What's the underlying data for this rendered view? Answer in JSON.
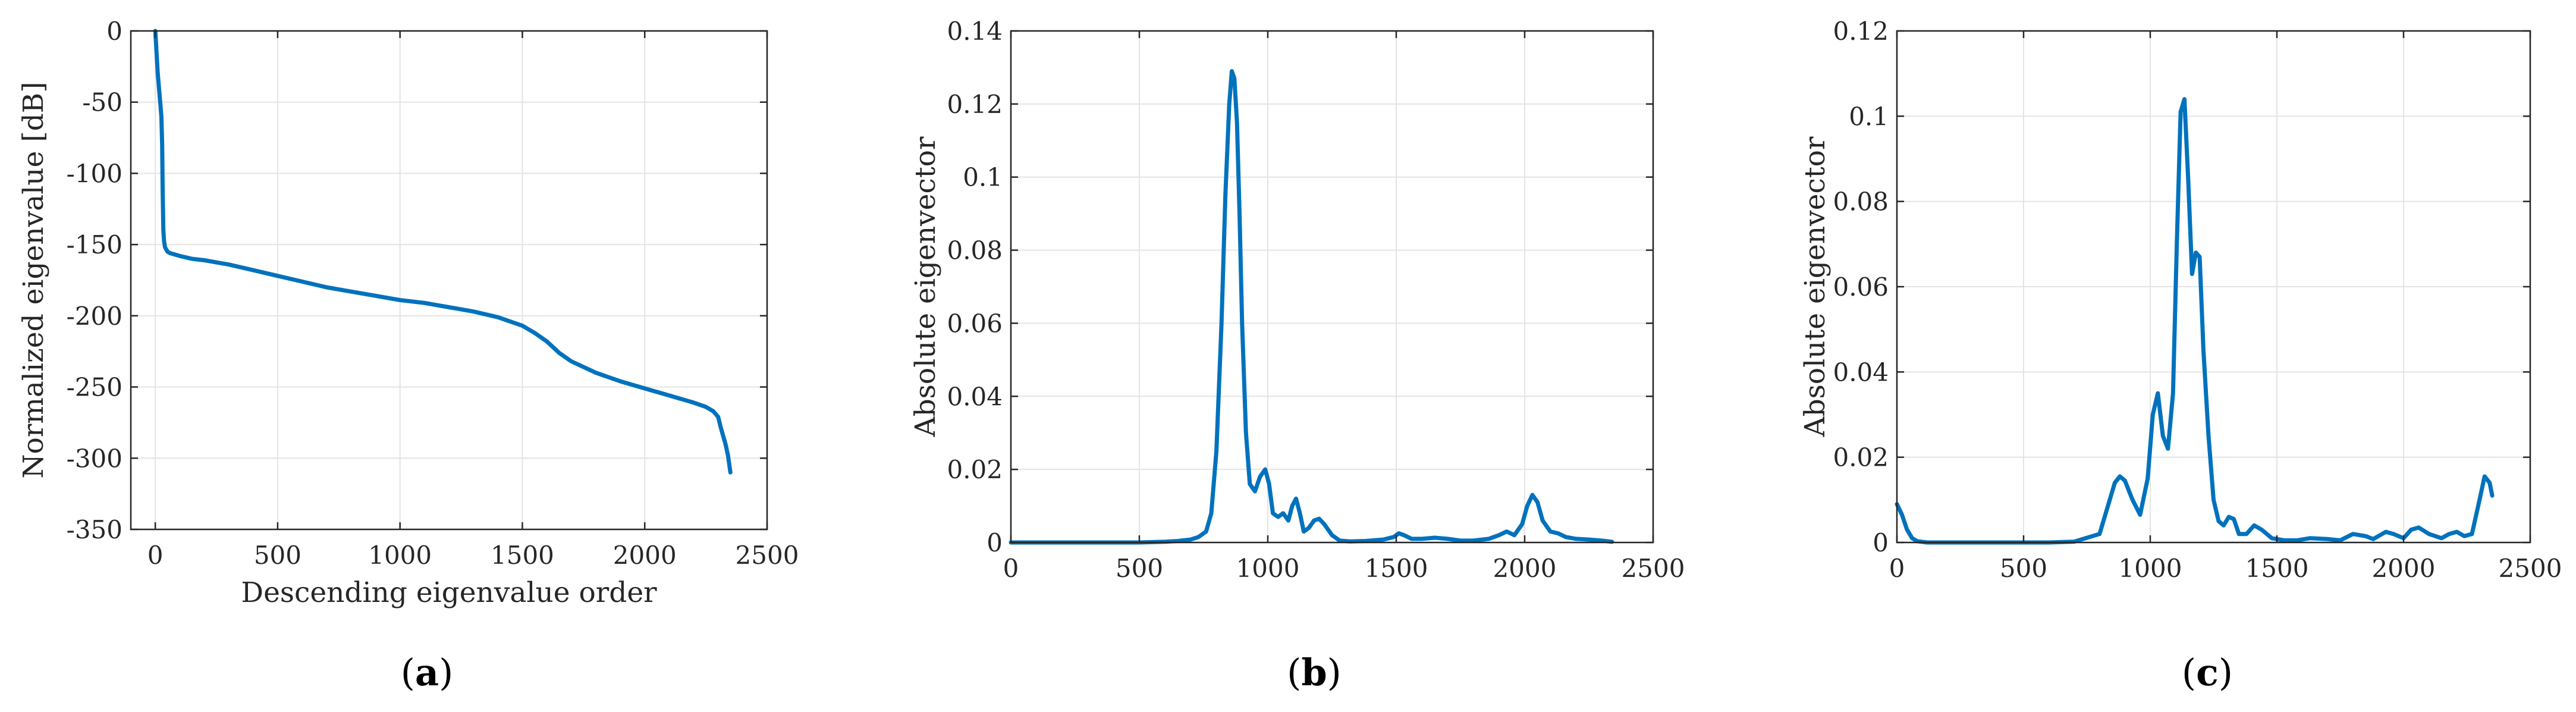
{
  "colors": {
    "line": "#0072BD",
    "grid": "#e4e4e4",
    "axis": "#262626"
  },
  "chart_data": [
    {
      "type": "line",
      "panel_label": "a",
      "xlabel": "Descending eigenvalue order",
      "ylabel": "Normalized eigenvalue [dB]",
      "xlim": [
        -100,
        2500
      ],
      "ylim": [
        -350,
        0
      ],
      "xticks": [
        0,
        500,
        1000,
        1500,
        2000,
        2500
      ],
      "yticks": [
        0,
        -50,
        -100,
        -150,
        -200,
        -250,
        -300,
        -350
      ],
      "grid": true,
      "series": [
        {
          "x": [
            0,
            5,
            10,
            15,
            20,
            25,
            28,
            30,
            33,
            36,
            40,
            50,
            60,
            80,
            100,
            150,
            200,
            300,
            400,
            500,
            600,
            700,
            800,
            900,
            1000,
            1100,
            1200,
            1300,
            1400,
            1450,
            1500,
            1550,
            1600,
            1650,
            1700,
            1800,
            1900,
            2000,
            2100,
            2200,
            2250,
            2280,
            2300,
            2310,
            2320,
            2330,
            2340,
            2350
          ],
          "y": [
            0,
            -15,
            -30,
            -40,
            -50,
            -60,
            -80,
            -110,
            -140,
            -148,
            -152,
            -155,
            -156,
            -157,
            -158,
            -160,
            -161,
            -164,
            -168,
            -172,
            -176,
            -180,
            -183,
            -186,
            -189,
            -191,
            -194,
            -197,
            -201,
            -204,
            -207,
            -212,
            -218,
            -226,
            -232,
            -240,
            -246,
            -251,
            -256,
            -261,
            -264,
            -267,
            -271,
            -278,
            -284,
            -290,
            -298,
            -310
          ]
        }
      ]
    },
    {
      "type": "line",
      "panel_label": "b",
      "xlabel": "",
      "ylabel": "Absolute eigenvector",
      "xlim": [
        0,
        2500
      ],
      "ylim": [
        0,
        0.14
      ],
      "xticks": [
        0,
        500,
        1000,
        1500,
        2000,
        2500
      ],
      "yticks": [
        0,
        0.02,
        0.04,
        0.06,
        0.08,
        0.1,
        0.12,
        0.14
      ],
      "grid": true,
      "series": [
        {
          "x": [
            0,
            100,
            200,
            300,
            400,
            500,
            600,
            650,
            700,
            730,
            760,
            780,
            800,
            820,
            835,
            850,
            860,
            870,
            880,
            890,
            900,
            915,
            930,
            950,
            970,
            990,
            1005,
            1020,
            1040,
            1060,
            1080,
            1095,
            1110,
            1125,
            1140,
            1160,
            1180,
            1200,
            1220,
            1250,
            1280,
            1320,
            1380,
            1450,
            1490,
            1510,
            1530,
            1560,
            1600,
            1650,
            1700,
            1750,
            1800,
            1860,
            1900,
            1930,
            1960,
            1990,
            2010,
            2030,
            2050,
            2070,
            2100,
            2130,
            2160,
            2200,
            2250,
            2300,
            2340
          ],
          "y": [
            0,
            0,
            0,
            0,
            0,
            0,
            0.0002,
            0.0004,
            0.0008,
            0.0015,
            0.003,
            0.008,
            0.025,
            0.06,
            0.095,
            0.12,
            0.129,
            0.127,
            0.115,
            0.09,
            0.06,
            0.03,
            0.016,
            0.014,
            0.018,
            0.02,
            0.016,
            0.008,
            0.007,
            0.008,
            0.006,
            0.01,
            0.012,
            0.008,
            0.003,
            0.004,
            0.006,
            0.0065,
            0.005,
            0.002,
            0.0005,
            0.0003,
            0.0004,
            0.0008,
            0.0015,
            0.0025,
            0.002,
            0.001,
            0.001,
            0.0013,
            0.001,
            0.0005,
            0.0005,
            0.001,
            0.002,
            0.003,
            0.002,
            0.005,
            0.01,
            0.013,
            0.011,
            0.006,
            0.003,
            0.0025,
            0.0015,
            0.001,
            0.0008,
            0.0005,
            0.0002
          ]
        }
      ]
    },
    {
      "type": "line",
      "panel_label": "c",
      "xlabel": "",
      "ylabel": "Absolute eigenvector",
      "xlim": [
        0,
        2500
      ],
      "ylim": [
        0,
        0.12
      ],
      "xticks": [
        0,
        500,
        1000,
        1500,
        2000,
        2500
      ],
      "yticks": [
        0,
        0.02,
        0.04,
        0.06,
        0.08,
        0.1,
        0.12
      ],
      "grid": true,
      "series": [
        {
          "x": [
            0,
            20,
            40,
            60,
            80,
            120,
            200,
            300,
            400,
            500,
            600,
            700,
            800,
            830,
            860,
            880,
            900,
            930,
            960,
            990,
            1010,
            1030,
            1050,
            1070,
            1090,
            1105,
            1120,
            1135,
            1150,
            1165,
            1180,
            1195,
            1210,
            1230,
            1250,
            1270,
            1290,
            1310,
            1330,
            1350,
            1380,
            1410,
            1440,
            1480,
            1530,
            1580,
            1630,
            1700,
            1750,
            1800,
            1850,
            1880,
            1930,
            1960,
            2000,
            2030,
            2060,
            2100,
            2150,
            2180,
            2210,
            2240,
            2270,
            2300,
            2320,
            2340,
            2350
          ],
          "y": [
            0.009,
            0.0065,
            0.003,
            0.001,
            0.0003,
            0,
            0,
            0,
            0,
            0,
            0,
            0.0002,
            0.002,
            0.008,
            0.014,
            0.0155,
            0.0145,
            0.01,
            0.0065,
            0.015,
            0.03,
            0.035,
            0.025,
            0.022,
            0.035,
            0.07,
            0.101,
            0.104,
            0.085,
            0.063,
            0.068,
            0.067,
            0.045,
            0.025,
            0.01,
            0.005,
            0.004,
            0.006,
            0.0055,
            0.002,
            0.002,
            0.004,
            0.003,
            0.001,
            0.0005,
            0.0005,
            0.001,
            0.0008,
            0.0005,
            0.002,
            0.0015,
            0.0008,
            0.0025,
            0.002,
            0.001,
            0.003,
            0.0035,
            0.002,
            0.001,
            0.002,
            0.0025,
            0.0015,
            0.002,
            0.01,
            0.0155,
            0.014,
            0.011
          ]
        }
      ]
    }
  ]
}
